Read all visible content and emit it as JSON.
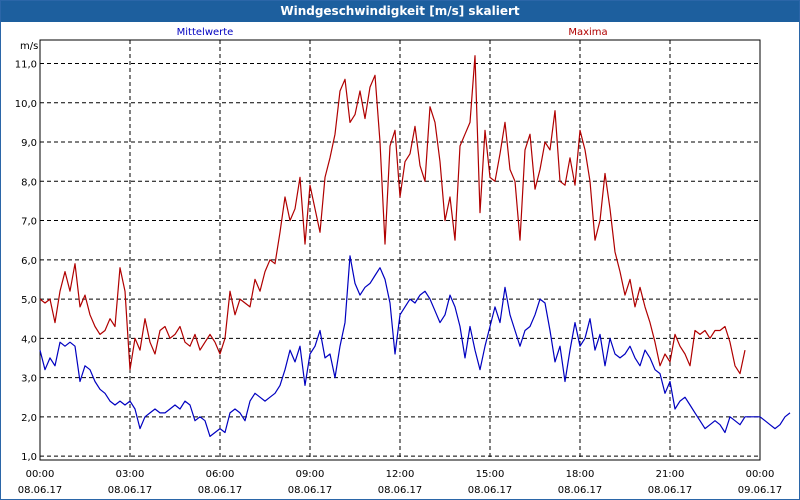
{
  "window": {
    "title": "Windgeschwindigkeit [m/s] skaliert"
  },
  "chart_data": {
    "type": "line",
    "title": "Windgeschwindigkeit [m/s] skaliert",
    "ylabel": "m/s",
    "xlabel": "",
    "ylim": [
      0.9,
      11.6
    ],
    "y_ticks": [
      "1,0",
      "2,0",
      "3,0",
      "4,0",
      "5,0",
      "6,0",
      "7,0",
      "8,0",
      "9,0",
      "10,0",
      "11,0"
    ],
    "x_ticks": [
      {
        "time": "00:00",
        "date": "08.06.17"
      },
      {
        "time": "03:00",
        "date": "08.06.17"
      },
      {
        "time": "06:00",
        "date": "08.06.17"
      },
      {
        "time": "09:00",
        "date": "08.06.17"
      },
      {
        "time": "12:00",
        "date": "08.06.17"
      },
      {
        "time": "15:00",
        "date": "08.06.17"
      },
      {
        "time": "18:00",
        "date": "08.06.17"
      },
      {
        "time": "21:00",
        "date": "08.06.17"
      },
      {
        "time": "00:00",
        "date": "09.06.17"
      }
    ],
    "grid": true,
    "legend_position": "top",
    "series": [
      {
        "name": "Mittelwerte",
        "color": "#0000c0",
        "values": [
          3.7,
          3.2,
          3.5,
          3.3,
          3.9,
          3.8,
          3.9,
          3.8,
          2.9,
          3.3,
          3.2,
          2.9,
          2.7,
          2.6,
          2.4,
          2.3,
          2.4,
          2.3,
          2.4,
          2.2,
          1.7,
          2.0,
          2.1,
          2.2,
          2.1,
          2.1,
          2.2,
          2.3,
          2.2,
          2.4,
          2.3,
          1.9,
          2.0,
          1.9,
          1.5,
          1.6,
          1.7,
          1.6,
          2.1,
          2.2,
          2.1,
          1.9,
          2.4,
          2.6,
          2.5,
          2.4,
          2.5,
          2.6,
          2.8,
          3.2,
          3.7,
          3.4,
          3.8,
          2.8,
          3.6,
          3.8,
          4.2,
          3.5,
          3.6,
          3.0,
          3.8,
          4.4,
          6.1,
          5.4,
          5.1,
          5.3,
          5.4,
          5.6,
          5.8,
          5.5,
          4.9,
          3.6,
          4.6,
          4.8,
          5.0,
          4.9,
          5.1,
          5.2,
          5.0,
          4.7,
          4.4,
          4.6,
          5.1,
          4.8,
          4.3,
          3.5,
          4.3,
          3.7,
          3.2,
          3.8,
          4.3,
          4.8,
          4.4,
          5.3,
          4.6,
          4.2,
          3.8,
          4.2,
          4.3,
          4.6,
          5.0,
          4.9,
          4.2,
          3.4,
          3.8,
          2.9,
          3.7,
          4.4,
          3.8,
          4.0,
          4.5,
          3.7,
          4.1,
          3.3,
          4.0,
          3.6,
          3.5,
          3.6,
          3.8,
          3.5,
          3.3,
          3.7,
          3.5,
          3.2,
          3.1,
          2.6,
          2.9,
          2.2,
          2.4,
          2.5,
          2.3,
          2.1,
          1.9,
          1.7,
          1.8,
          1.9,
          1.8,
          1.6,
          2.0,
          1.9,
          1.8,
          2.0,
          2.0,
          2.0,
          2.0,
          1.9,
          1.8,
          1.7,
          1.8,
          2.0,
          2.1
        ],
        "time_step_minutes": 10
      },
      {
        "name": "Maxima",
        "color": "#b00000",
        "values": [
          5.0,
          4.9,
          5.0,
          4.4,
          5.2,
          5.7,
          5.2,
          5.9,
          4.8,
          5.1,
          4.6,
          4.3,
          4.1,
          4.2,
          4.5,
          4.3,
          5.8,
          5.2,
          3.2,
          4.0,
          3.7,
          4.5,
          3.9,
          3.6,
          4.2,
          4.3,
          4.0,
          4.1,
          4.3,
          3.9,
          3.8,
          4.1,
          3.7,
          3.9,
          4.1,
          3.9,
          3.6,
          4.0,
          5.2,
          4.6,
          5.0,
          4.9,
          4.8,
          5.5,
          5.2,
          5.7,
          6.0,
          5.9,
          6.7,
          7.6,
          7.0,
          7.3,
          8.1,
          6.4,
          7.9,
          7.3,
          6.7,
          8.1,
          8.6,
          9.2,
          10.3,
          10.6,
          9.5,
          9.7,
          10.3,
          9.6,
          10.4,
          10.7,
          9.0,
          6.4,
          8.9,
          9.3,
          7.6,
          8.5,
          8.7,
          9.4,
          8.4,
          8.0,
          9.9,
          9.5,
          8.5,
          7.0,
          7.6,
          6.5,
          8.9,
          9.2,
          9.5,
          11.2,
          7.2,
          9.3,
          8.1,
          8.0,
          8.7,
          9.5,
          8.3,
          8.0,
          6.5,
          8.8,
          9.2,
          7.8,
          8.3,
          9.0,
          8.8,
          9.8,
          8.0,
          7.9,
          8.6,
          7.9,
          9.3,
          8.8,
          8.0,
          6.5,
          7.0,
          8.2,
          7.3,
          6.2,
          5.7,
          5.1,
          5.5,
          4.8,
          5.3,
          4.8,
          4.4,
          3.9,
          3.3,
          3.6,
          3.4,
          4.1,
          3.8,
          3.6,
          3.3,
          4.2,
          4.1,
          4.2,
          4.0,
          4.2,
          4.2,
          4.3,
          3.9,
          3.3,
          3.1,
          3.7
        ],
        "time_step_minutes": 10
      }
    ]
  }
}
